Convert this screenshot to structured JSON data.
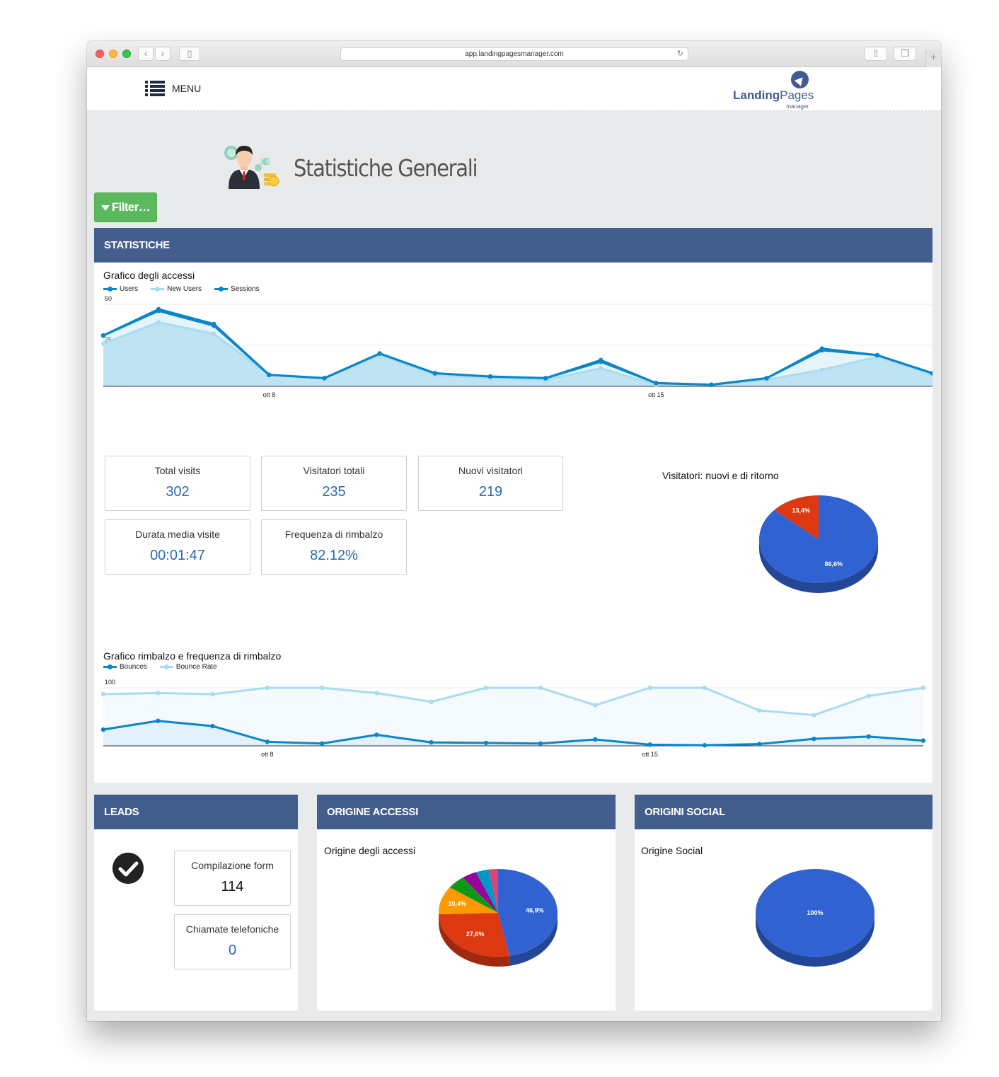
{
  "browser": {
    "url": "app.landingpagesmanager.com",
    "new_tab_label": "+"
  },
  "header": {
    "menu_label": "MENU",
    "logo_word1": "Landing",
    "logo_word2": "Pages",
    "logo_sub": "manager"
  },
  "page": {
    "title": "Statistiche Generali",
    "filter_label": "Filter…"
  },
  "panels": {
    "statistiche": "STATISTICHE",
    "leads": "LEADS",
    "origine_accessi": "ORIGINE ACCESSI",
    "origini_social": "ORIGINI SOCIAL"
  },
  "stats": [
    {
      "label": "Total visits",
      "value": "302"
    },
    {
      "label": "Visitatori totali",
      "value": "235"
    },
    {
      "label": "Nuovi visitatori",
      "value": "219"
    },
    {
      "label": "Durata media visite",
      "value": "00:01:47"
    },
    {
      "label": "Frequenza di rimbalzo",
      "value": "82.12%"
    }
  ],
  "leads": [
    {
      "label": "Compilazione form",
      "value": "114"
    },
    {
      "label": "Chiamate telefoniche",
      "value": "0"
    }
  ],
  "colors": {
    "panel_header": "#435d8c",
    "filter_button": "#5cb85c",
    "value_blue": "#2a6ab3",
    "series_dark": "#0a86c8",
    "series_light": "#a8dcf0",
    "pie_blue": "#3062d1",
    "pie_red": "#dc3912",
    "pie_orange": "#ff9900",
    "pie_green": "#109618",
    "pie_purple": "#990099",
    "pie_teal": "#0099c6",
    "pie_pink": "#dd4477"
  },
  "chart_data": [
    {
      "type": "area",
      "title": "Grafico degli accessi",
      "x_ticks": [
        "ott 8",
        "ott 15"
      ],
      "x_tick_index": [
        3,
        10
      ],
      "y_ticks": [
        25,
        50
      ],
      "ylim": [
        0,
        50
      ],
      "legend_position": "top-left",
      "series": [
        {
          "name": "Users",
          "color": "#0a86c8",
          "values": [
            31,
            46,
            37,
            7,
            5,
            20,
            8,
            6,
            5,
            15,
            2,
            1,
            5,
            22,
            19,
            8
          ]
        },
        {
          "name": "New Users",
          "color": "#a8dcf0",
          "values": [
            26,
            39,
            32,
            7,
            5,
            19,
            7,
            5,
            4,
            11,
            1,
            1,
            4,
            10,
            18,
            7
          ]
        },
        {
          "name": "Sessions",
          "color": "#0a86c8",
          "values": [
            31,
            47,
            38,
            7,
            5,
            20,
            8,
            6,
            5,
            16,
            2,
            1,
            5,
            23,
            19,
            8
          ]
        }
      ]
    },
    {
      "type": "pie",
      "title": "Visitatori: nuovi e di ritorno",
      "slices": [
        {
          "value": 86.6,
          "label": "86,6%",
          "color": "#3062d1"
        },
        {
          "value": 13.4,
          "label": "13,4%",
          "color": "#dc3912"
        }
      ]
    },
    {
      "type": "area",
      "title": "Grafico rimbalzo e frequenza di rimbalzo",
      "x_ticks": [
        "ott 8",
        "ott 15"
      ],
      "x_tick_index": [
        3,
        10
      ],
      "y_ticks": [
        50,
        100
      ],
      "ylim": [
        0,
        100
      ],
      "legend_position": "top-left",
      "series": [
        {
          "name": "Bounces",
          "color": "#0a86c8",
          "values": [
            28,
            43,
            34,
            7,
            4,
            19,
            6,
            5,
            4,
            11,
            2,
            1,
            3,
            12,
            16,
            9
          ]
        },
        {
          "name": "Bounce Rate",
          "color": "#a8dcf0",
          "values": [
            89,
            91,
            89,
            100,
            100,
            91,
            76,
            100,
            100,
            70,
            100,
            100,
            61,
            53,
            86,
            100
          ]
        }
      ]
    },
    {
      "type": "pie",
      "title": "Origine degli accessi",
      "slices": [
        {
          "value": 46.9,
          "label": "46,9%",
          "color": "#3062d1"
        },
        {
          "value": 27.6,
          "label": "27,6%",
          "color": "#dc3912"
        },
        {
          "value": 10.4,
          "label": "10,4%",
          "color": "#ff9900"
        },
        {
          "value": 5.0,
          "label": "",
          "color": "#109618"
        },
        {
          "value": 4.0,
          "label": "",
          "color": "#990099"
        },
        {
          "value": 3.6,
          "label": "",
          "color": "#0099c6"
        },
        {
          "value": 2.5,
          "label": "",
          "color": "#dd4477"
        }
      ]
    },
    {
      "type": "pie",
      "title": "Origine Social",
      "slices": [
        {
          "value": 100,
          "label": "100%",
          "color": "#3062d1"
        }
      ]
    }
  ]
}
